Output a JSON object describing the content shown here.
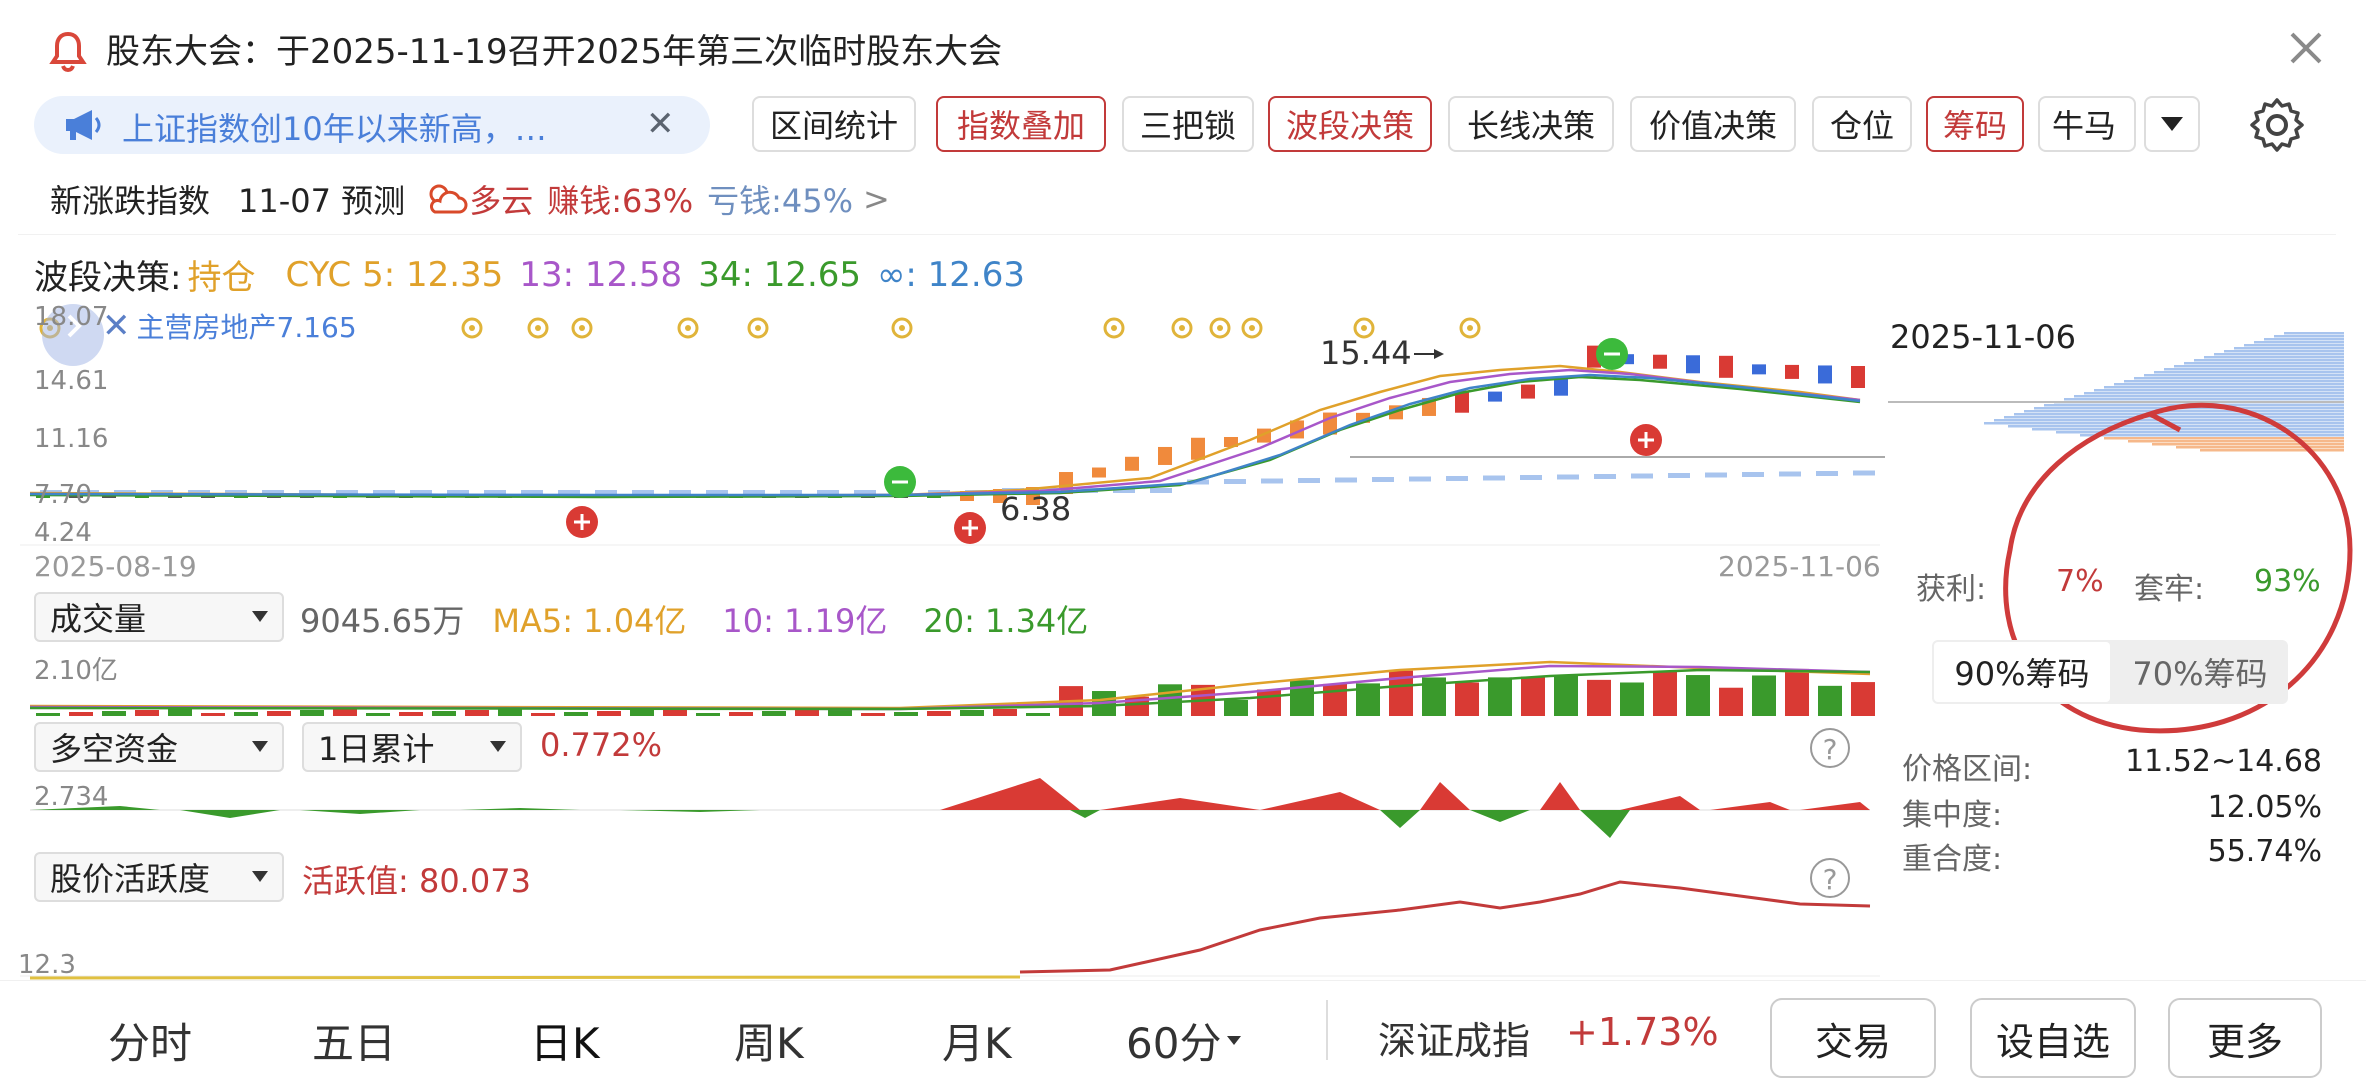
{
  "notice": {
    "text": "股东大会：于2025-11-19召开2025年第三次临时股东大会"
  },
  "toolbar": {
    "news": "上证指数创10年以来新高，…",
    "buttons": [
      "区间统计",
      "指数叠加",
      "三把锁",
      "波段决策",
      "长线决策",
      "价值决策",
      "仓位",
      "筹码",
      "牛马"
    ]
  },
  "market_line": {
    "label": "新涨跌指数",
    "date": "11-07 预测",
    "weather": "多云",
    "gain": "赚钱:63%",
    "loss": "亏钱:45%",
    "more": ">"
  },
  "main_chart": {
    "legend_title": "波段决策:",
    "state": "持仓",
    "cyc5": "CYC 5: 12.35",
    "c13": "13: 12.58",
    "c34": "34: 12.65",
    "cinf": "∞: 12.63",
    "overlay": "主营房地产7.165",
    "y_ticks": [
      "18.07",
      "14.61",
      "11.16",
      "7.70",
      "4.24"
    ],
    "high_label": "15.44",
    "low_label": "6.38",
    "date_start": "2025-08-19",
    "date_end": "2025-11-06"
  },
  "volume": {
    "indicator": "成交量",
    "value": "9045.65万",
    "ma5": "MA5: 1.04亿",
    "ma10": "10: 1.19亿",
    "ma20": "20: 1.34亿",
    "y_tick": "2.10亿"
  },
  "fund": {
    "indicator": "多空资金",
    "period": "1日累计",
    "value": "0.772%",
    "y_tick": "2.734"
  },
  "activity": {
    "indicator": "股价活跃度",
    "value": "活跃值: 80.073",
    "y_tick": "12.3"
  },
  "chip_panel": {
    "date": "2025-11-06",
    "profit_label": "获利:",
    "profit": "7%",
    "trapped_label": "套牢:",
    "trapped": "93%",
    "tab90": "90%筹码",
    "tab70": "70%筹码",
    "range_label": "价格区间:",
    "range": "11.52~14.68",
    "conc_label": "集中度:",
    "conc": "12.05%",
    "overlap_label": "重合度:",
    "overlap": "55.74%"
  },
  "bottom": {
    "tabs": [
      "分时",
      "五日",
      "日K",
      "周K",
      "月K",
      "60分"
    ],
    "index_name": "深证成指",
    "index_change": "+1.73%",
    "trade": "交易",
    "watch": "设自选",
    "more": "更多"
  },
  "colors": {
    "up": "#d93a34",
    "down": "#3a9a2c",
    "accent": "#c23a3a",
    "blue": "#4a7fd9"
  }
}
